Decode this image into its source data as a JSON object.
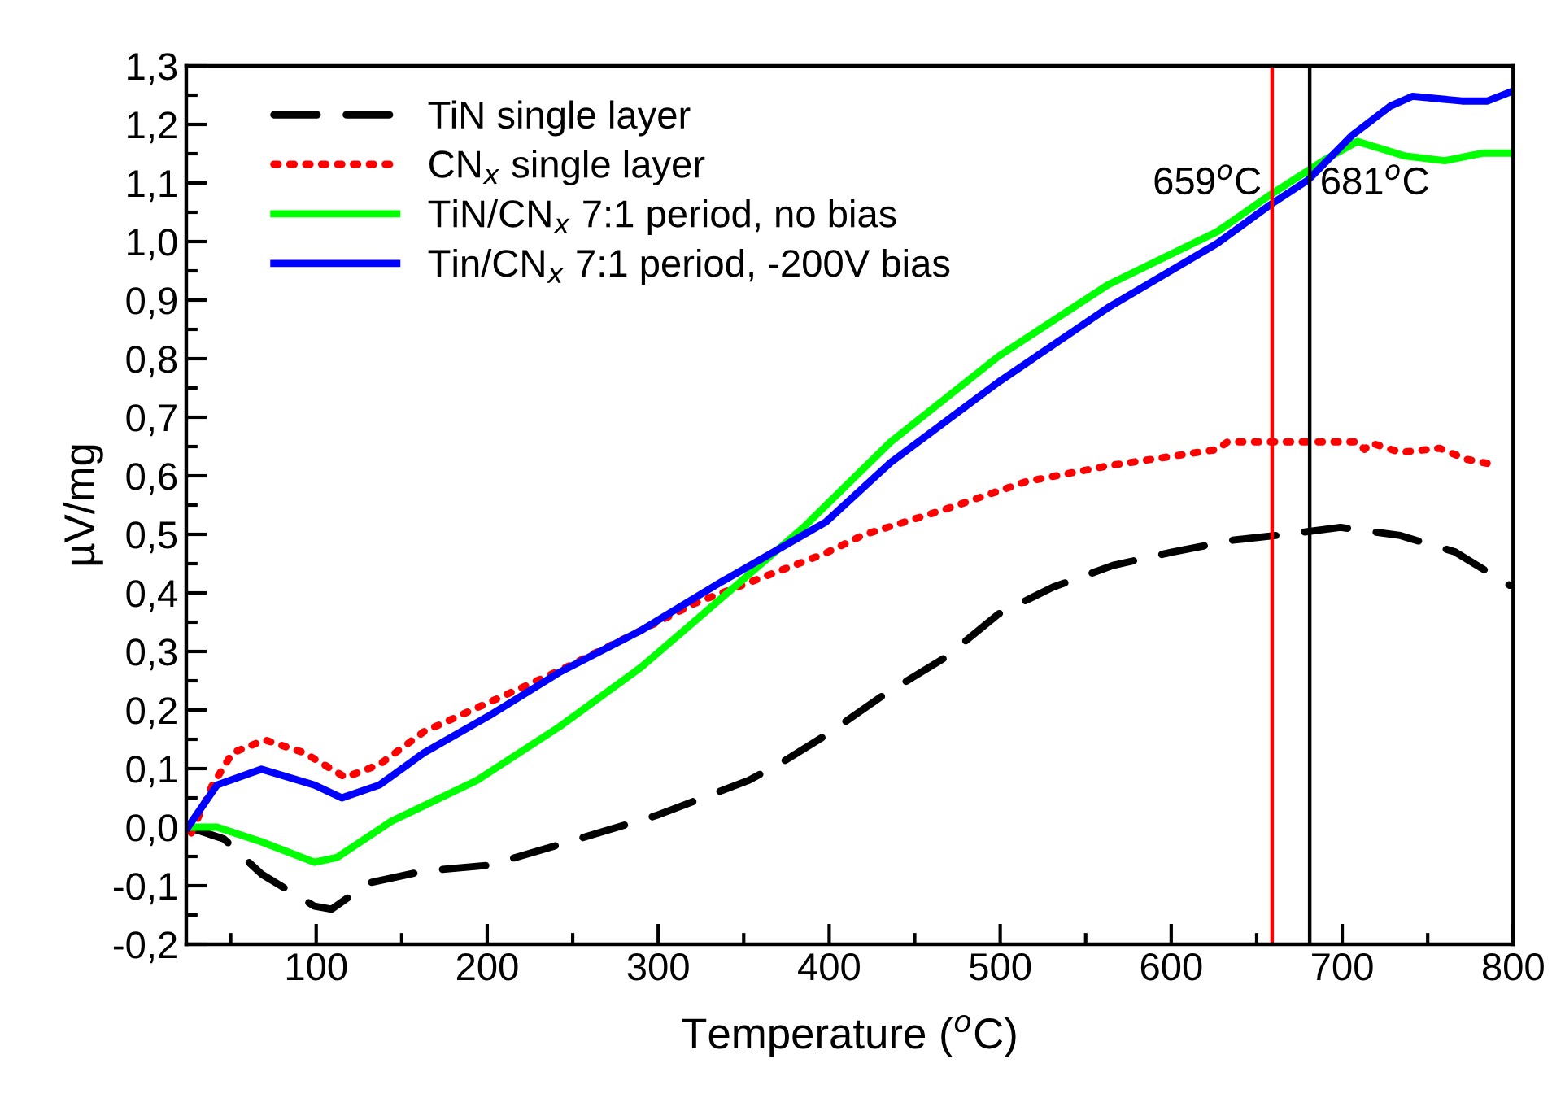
{
  "chart_data": {
    "type": "line",
    "xlabel": "Temperature ($^{o}$C)",
    "ylabel": "µV/mg",
    "xlim": [
      24,
      800
    ],
    "xticks": [
      100,
      200,
      300,
      400,
      500,
      600,
      700,
      800
    ],
    "ylim": [
      -0.2,
      1.3
    ],
    "yticks": [
      {
        "value": -0.2,
        "label": "-0,2"
      },
      {
        "value": -0.1,
        "label": "-0,1"
      },
      {
        "value": 0,
        "label": "0,0"
      },
      {
        "value": 0.1,
        "label": "0,1"
      },
      {
        "value": 0.2,
        "label": "0,2"
      },
      {
        "value": 0.3,
        "label": "0,3"
      },
      {
        "value": 0.4,
        "label": "0,4"
      },
      {
        "value": 0.5,
        "label": "0,5"
      },
      {
        "value": 0.6,
        "label": "0,6"
      },
      {
        "value": 0.7,
        "label": "0,7"
      },
      {
        "value": 0.8,
        "label": "0,8"
      },
      {
        "value": 0.9,
        "label": "0,9"
      },
      {
        "value": 1.0,
        "label": "1,0"
      },
      {
        "value": 1.1,
        "label": "1,1"
      },
      {
        "value": 1.2,
        "label": "1,2"
      },
      {
        "value": 1.3,
        "label": "1,3"
      }
    ],
    "grid": false,
    "legend": "top left",
    "marker": "none",
    "series": [
      {
        "name": "TiN single layer",
        "color": "#000000",
        "line_style": "dashed",
        "x": [
          25,
          46,
          68,
          99,
          109,
          131,
          163,
          201,
          242,
          299,
          353,
          372,
          398,
          432,
          468,
          499,
          531,
          566,
          601,
          636,
          667,
          699,
          734,
          766,
          798
        ],
        "values": [
          0.0,
          -0.02,
          -0.08,
          -0.135,
          -0.14,
          -0.095,
          -0.075,
          -0.065,
          -0.03,
          0.02,
          0.08,
          0.11,
          0.157,
          0.226,
          0.29,
          0.364,
          0.41,
          0.447,
          0.47,
          0.49,
          0.5,
          0.512,
          0.498,
          0.47,
          0.413
        ]
      },
      {
        "name": "CN$_{x}$ single layer",
        "color": "#ff0000",
        "line_style": "dotted",
        "x": [
          27,
          39,
          51,
          70,
          93,
          117,
          137,
          163,
          201,
          242,
          290,
          322,
          398,
          420,
          468,
          515,
          563,
          627,
          633,
          674,
          709,
          713,
          717,
          734,
          757,
          773,
          787
        ],
        "values": [
          -0.01,
          0.07,
          0.127,
          0.149,
          0.127,
          0.085,
          0.107,
          0.163,
          0.213,
          0.267,
          0.336,
          0.383,
          0.468,
          0.499,
          0.543,
          0.59,
          0.617,
          0.645,
          0.658,
          0.658,
          0.658,
          0.645,
          0.656,
          0.64,
          0.647,
          0.628,
          0.62
        ]
      },
      {
        "name": "TiN/CN$_{x}$ 7:1 period, no bias",
        "color": "#00ff00",
        "line_style": "solid",
        "x": [
          25,
          42,
          68,
          99,
          112,
          144,
          194,
          242,
          290,
          337,
          385,
          436,
          499,
          563,
          627,
          658,
          690,
          709,
          737,
          760,
          782,
          799
        ],
        "values": [
          0.0,
          0.0,
          -0.025,
          -0.06,
          -0.052,
          0.01,
          0.08,
          0.171,
          0.273,
          0.391,
          0.512,
          0.658,
          0.804,
          0.926,
          1.017,
          1.08,
          1.14,
          1.171,
          1.146,
          1.138,
          1.151,
          1.151
        ]
      },
      {
        "name": "Tin/CN$_{x}$ 7:1 period, -200V bias",
        "color": "#0000ff",
        "line_style": "solid",
        "x": [
          25,
          42,
          68,
          99,
          115,
          137,
          163,
          201,
          242,
          290,
          337,
          398,
          436,
          499,
          563,
          627,
          658,
          680,
          706,
          728,
          741,
          770,
          785,
          799
        ],
        "values": [
          0.0,
          0.072,
          0.099,
          0.072,
          0.05,
          0.072,
          0.127,
          0.19,
          0.264,
          0.336,
          0.419,
          0.521,
          0.623,
          0.76,
          0.887,
          0.997,
          1.063,
          1.105,
          1.182,
          1.231,
          1.248,
          1.24,
          1.24,
          1.256
        ]
      }
    ],
    "ref_lines": [
      {
        "axis": "x",
        "value": 659,
        "label": "659$^{o}$C",
        "color": "#ff0000"
      },
      {
        "axis": "x",
        "value": 681,
        "label": "681$^{o}$C",
        "color": "#000000"
      }
    ]
  }
}
